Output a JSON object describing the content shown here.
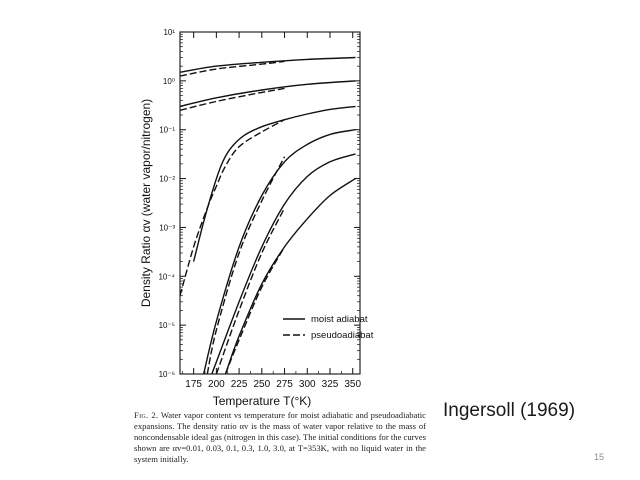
{
  "slide": {
    "page_number": "15",
    "citation": "Ingersoll (1969)"
  },
  "caption": {
    "lead": "Fig. 2.",
    "text": "Water vapor content vs temperature for moist adiabatic and pseudoadiabatic expansions. The density ratio αv is the mass of water vapor relative to the mass of noncondensable ideal gas (nitrogen in this case). The initial conditions for the curves shown are αv=0.01, 0.03, 0.1, 0.3, 1.0, 3.0, at T=353K, with no liquid water in the system initially."
  },
  "chart_data": {
    "type": "line",
    "xlabel": "Temperature T(°K)",
    "ylabel": "Density Ratio αv (water vapor/nitrogen)",
    "xlim": [
      160,
      358
    ],
    "ylim": [
      1e-06,
      10
    ],
    "y_scale": "log",
    "x_ticks": [
      175,
      200,
      225,
      250,
      275,
      300,
      325,
      350
    ],
    "y_ticks": [
      {
        "value": 1e-06,
        "label": "10⁻⁶"
      },
      {
        "value": 1e-05,
        "label": "10⁻⁵"
      },
      {
        "value": 0.0001,
        "label": "10⁻⁴"
      },
      {
        "value": 0.001,
        "label": "10⁻³"
      },
      {
        "value": 0.01,
        "label": "10⁻²"
      },
      {
        "value": 0.1,
        "label": "10⁻¹"
      },
      {
        "value": 1,
        "label": "10⁰"
      },
      {
        "value": 10,
        "label": "10¹"
      }
    ],
    "legend": {
      "position": "bottom-right",
      "entries": [
        "moist adiabat",
        "pseudoadiabat"
      ]
    },
    "series": [
      {
        "name": "moist adiabat",
        "style": "solid",
        "group": 1,
        "x": [
          160,
          200,
          250,
          300,
          353
        ],
        "y": [
          1.5,
          2.0,
          2.4,
          2.75,
          3.0
        ]
      },
      {
        "name": "pseudoadiabat",
        "style": "dashed",
        "group": 1,
        "x": [
          160,
          200,
          250,
          275
        ],
        "y": [
          1.25,
          1.75,
          2.2,
          2.5
        ]
      },
      {
        "name": "moist adiabat",
        "style": "solid",
        "group": 2,
        "x": [
          160,
          200,
          250,
          300,
          353
        ],
        "y": [
          0.3,
          0.45,
          0.65,
          0.85,
          1.0
        ]
      },
      {
        "name": "pseudoadiabat",
        "style": "dashed",
        "group": 2,
        "x": [
          160,
          200,
          250,
          275
        ],
        "y": [
          0.25,
          0.38,
          0.58,
          0.7
        ]
      },
      {
        "name": "moist adiabat",
        "style": "solid",
        "group": 3,
        "x": [
          175,
          185,
          195,
          205,
          215,
          230,
          250,
          275,
          300,
          325,
          353
        ],
        "y": [
          0.0002,
          0.0011,
          0.005,
          0.018,
          0.04,
          0.075,
          0.115,
          0.16,
          0.21,
          0.26,
          0.3
        ]
      },
      {
        "name": "pseudoadiabat",
        "style": "dashed",
        "group": 3,
        "x": [
          160,
          175,
          190,
          200,
          210,
          225,
          250,
          275
        ],
        "y": [
          4e-05,
          0.0004,
          0.0025,
          0.007,
          0.018,
          0.045,
          0.09,
          0.16
        ]
      },
      {
        "name": "moist adiabat",
        "style": "solid",
        "group": 4,
        "x": [
          186,
          200,
          225,
          250,
          275,
          300,
          325,
          353
        ],
        "y": [
          1e-06,
          1.2e-05,
          0.0004,
          0.0045,
          0.022,
          0.05,
          0.08,
          0.1
        ]
      },
      {
        "name": "pseudoadiabat",
        "style": "dashed",
        "group": 4,
        "x": [
          190,
          200,
          225,
          250,
          275
        ],
        "y": [
          1e-06,
          8e-06,
          0.0003,
          0.0035,
          0.028
        ]
      },
      {
        "name": "moist adiabat",
        "style": "solid",
        "group": 5,
        "x": [
          195,
          225,
          250,
          275,
          300,
          325,
          353
        ],
        "y": [
          1e-06,
          3e-05,
          0.0004,
          0.003,
          0.011,
          0.022,
          0.032
        ]
      },
      {
        "name": "pseudoadiabat",
        "style": "dashed",
        "group": 5,
        "x": [
          200,
          225,
          250,
          275
        ],
        "y": [
          1e-06,
          2e-05,
          0.0003,
          0.0025
        ]
      },
      {
        "name": "moist adiabat",
        "style": "solid",
        "group": 6,
        "x": [
          210,
          225,
          250,
          275,
          300,
          325,
          353
        ],
        "y": [
          1e-06,
          6e-06,
          7e-05,
          0.0004,
          0.0015,
          0.0045,
          0.01
        ]
      },
      {
        "name": "pseudoadiabat",
        "style": "dashed",
        "group": 6,
        "x": [
          210,
          225,
          250,
          275
        ],
        "y": [
          1e-06,
          5e-06,
          6e-05,
          0.0004
        ]
      }
    ]
  }
}
